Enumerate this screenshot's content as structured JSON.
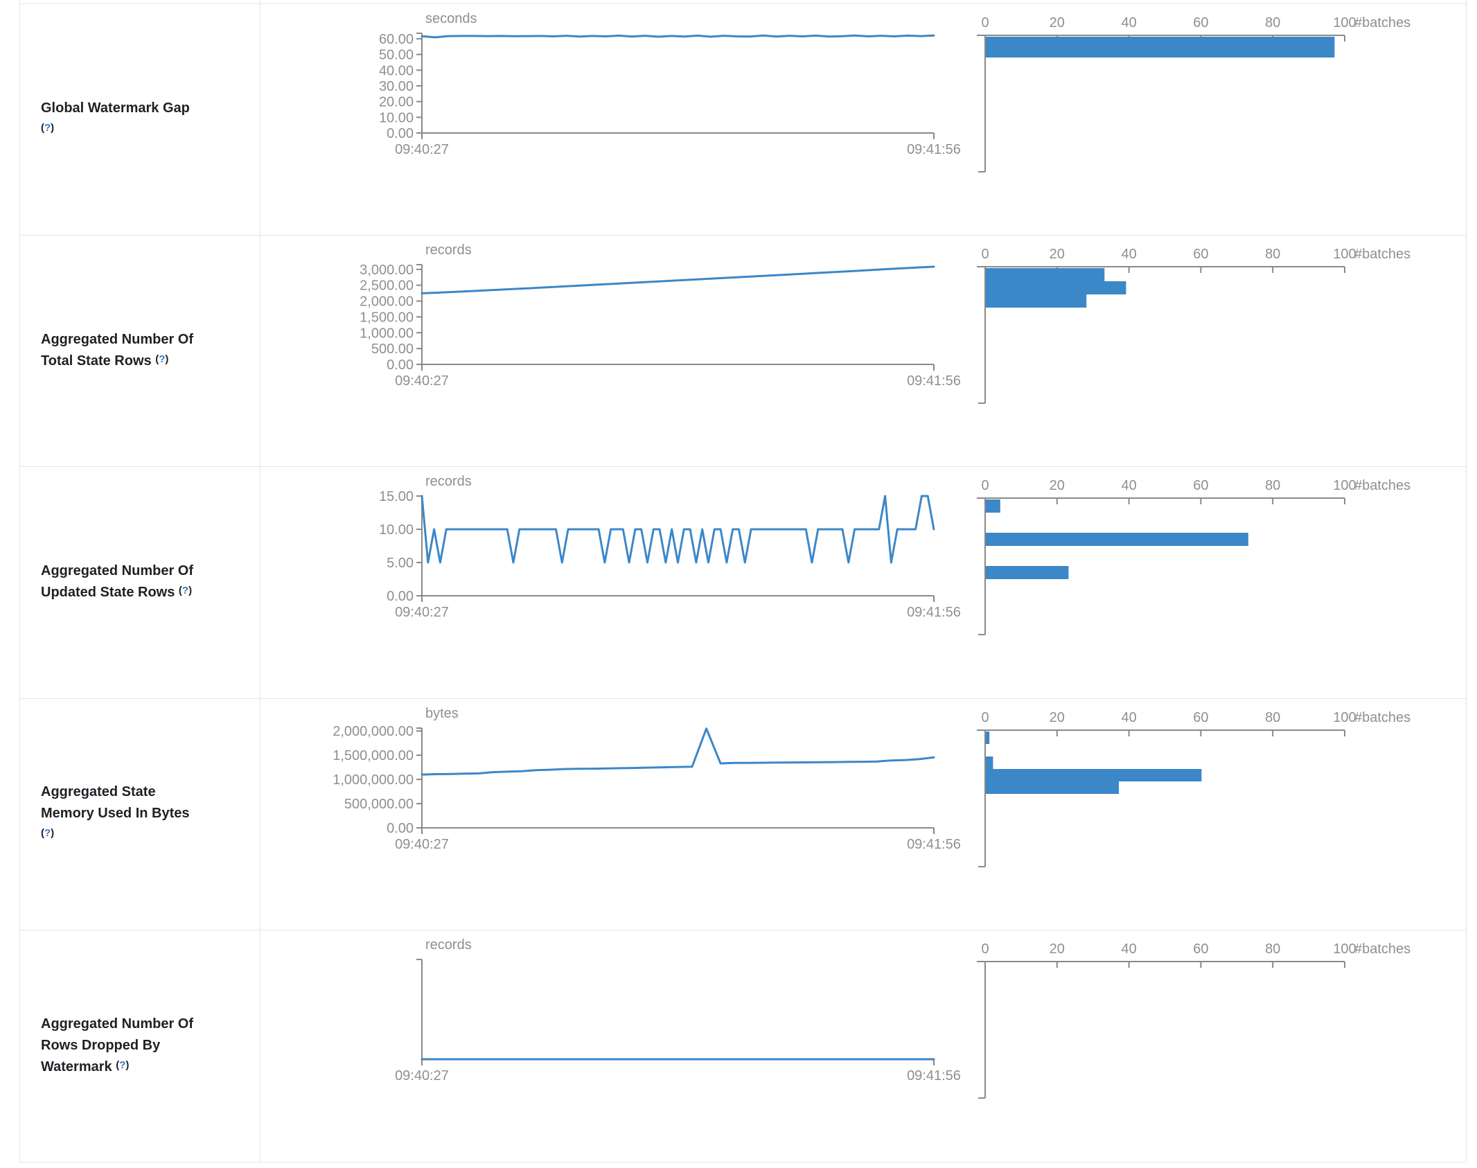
{
  "page": {
    "x_start_label": "09:40:27",
    "x_end_label": "09:41:56",
    "batches_axis_label": "#batches",
    "batches_ticks": [
      0,
      20,
      40,
      60,
      80,
      100
    ],
    "help_open": "(",
    "help_q": "?",
    "help_close": ")",
    "colors": {
      "accent": "#3b87c8",
      "axis_line": "#898989",
      "tick_text": "#8f8f8f",
      "label_text": "#1d2125",
      "help_link": "#3778c2",
      "border": "#e2e6ea"
    }
  },
  "chart_data": [
    {
      "label_lines": [
        "Global Watermark Gap"
      ],
      "help_on_own_line": true,
      "timeline": {
        "type": "line",
        "unit": "seconds",
        "ymax": 63.5,
        "yticks": [
          {
            "v": 60,
            "label": "60.00"
          },
          {
            "v": 50,
            "label": "50.00"
          },
          {
            "v": 40,
            "label": "40.00"
          },
          {
            "v": 30,
            "label": "30.00"
          },
          {
            "v": 20,
            "label": "20.00"
          },
          {
            "v": 10,
            "label": "10.00"
          },
          {
            "v": 0,
            "label": "0.00"
          }
        ],
        "x_range": [
          "09:40:27",
          "09:41:56"
        ],
        "values": [
          61.6,
          60.9,
          61.7,
          61.8,
          61.8,
          61.7,
          61.8,
          61.6,
          61.7,
          61.8,
          61.5,
          61.9,
          61.4,
          61.8,
          61.5,
          62.0,
          61.4,
          61.9,
          61.3,
          61.8,
          61.4,
          62.0,
          61.3,
          61.9,
          61.5,
          61.4,
          62.1,
          61.4,
          61.9,
          61.5,
          62.0,
          61.4,
          61.6,
          62.1,
          61.5,
          61.9,
          61.5,
          62.0,
          61.7,
          62.1
        ]
      },
      "histogram": {
        "type": "bar",
        "xlabel": "#batches",
        "xlim": [
          0,
          100
        ],
        "bars": [
          {
            "batches": 97,
            "offset": 0,
            "height": 30
          }
        ]
      }
    },
    {
      "label_lines": [
        "Aggregated Number Of",
        "Total State Rows"
      ],
      "help_on_own_line": false,
      "timeline": {
        "type": "line",
        "unit": "records",
        "ymax": 3150,
        "yticks": [
          {
            "v": 3000,
            "label": "3,000.00"
          },
          {
            "v": 2500,
            "label": "2,500.00"
          },
          {
            "v": 2000,
            "label": "2,000.00"
          },
          {
            "v": 1500,
            "label": "1,500.00"
          },
          {
            "v": 1000,
            "label": "1,000.00"
          },
          {
            "v": 500,
            "label": "500.00"
          },
          {
            "v": 0,
            "label": "0.00"
          }
        ],
        "x_range": [
          "09:40:27",
          "09:41:56"
        ],
        "values": [
          2245,
          2262,
          2280,
          2300,
          2318,
          2340,
          2360,
          2382,
          2400,
          2422,
          2445,
          2466,
          2488,
          2508,
          2530,
          2552,
          2574,
          2596,
          2618,
          2640,
          2662,
          2684,
          2708,
          2728,
          2752,
          2774,
          2796,
          2818,
          2840,
          2862,
          2886,
          2908,
          2930,
          2952,
          2976,
          2998,
          3020,
          3042,
          3065,
          3085
        ]
      },
      "histogram": {
        "type": "bar",
        "xlabel": "#batches",
        "xlim": [
          0,
          100
        ],
        "bars": [
          {
            "batches": 33,
            "offset": 0,
            "height": 19
          },
          {
            "batches": 39,
            "offset": 19,
            "height": 19
          },
          {
            "batches": 28,
            "offset": 38,
            "height": 19
          }
        ]
      }
    },
    {
      "label_lines": [
        "Aggregated Number Of",
        "Updated State Rows"
      ],
      "help_on_own_line": false,
      "timeline": {
        "type": "line",
        "unit": "records",
        "ymax": 15,
        "yticks": [
          {
            "v": 15,
            "label": "15.00"
          },
          {
            "v": 10,
            "label": "10.00"
          },
          {
            "v": 5,
            "label": "5.00"
          },
          {
            "v": 0,
            "label": "0.00"
          }
        ],
        "x_range": [
          "09:40:27",
          "09:41:56"
        ],
        "values": [
          15,
          5,
          10,
          5,
          10,
          10,
          10,
          10,
          10,
          10,
          10,
          10,
          10,
          10,
          10,
          5,
          10,
          10,
          10,
          10,
          10,
          10,
          10,
          5,
          10,
          10,
          10,
          10,
          10,
          10,
          5,
          10,
          10,
          10,
          5,
          10,
          10,
          5,
          10,
          10,
          5,
          10,
          5,
          10,
          10,
          5,
          10,
          5,
          10,
          10,
          5,
          10,
          10,
          5,
          10,
          10,
          10,
          10,
          10,
          10,
          10,
          10,
          10,
          10,
          5,
          10,
          10,
          10,
          10,
          10,
          5,
          10,
          10,
          10,
          10,
          10,
          15,
          5,
          10,
          10,
          10,
          10,
          15,
          15,
          10
        ]
      },
      "histogram": {
        "type": "bar",
        "xlabel": "#batches",
        "xlim": [
          0,
          100
        ],
        "bars": [
          {
            "batches": 4,
            "offset": 0,
            "height": 19
          },
          {
            "batches": 73,
            "offset": 48,
            "height": 19
          },
          {
            "batches": 23,
            "offset": 96,
            "height": 19
          }
        ]
      }
    },
    {
      "label_lines": [
        "Aggregated State",
        "Memory Used In Bytes"
      ],
      "help_on_own_line": true,
      "timeline": {
        "type": "line",
        "unit": "bytes",
        "ymax": 2060000,
        "yticks": [
          {
            "v": 2000000,
            "label": "2,000,000.00"
          },
          {
            "v": 1500000,
            "label": "1,500,000.00"
          },
          {
            "v": 1000000,
            "label": "1,000,000.00"
          },
          {
            "v": 500000,
            "label": "500,000.00"
          },
          {
            "v": 0,
            "label": "0.00"
          }
        ],
        "x_range": [
          "09:40:27",
          "09:41:56"
        ],
        "values": [
          1100000,
          1108000,
          1112000,
          1118000,
          1125000,
          1150000,
          1160000,
          1170000,
          1190000,
          1200000,
          1215000,
          1220000,
          1222000,
          1228000,
          1232000,
          1238000,
          1245000,
          1250000,
          1258000,
          1262000,
          2050000,
          1330000,
          1340000,
          1342000,
          1345000,
          1348000,
          1350000,
          1352000,
          1355000,
          1358000,
          1362000,
          1365000,
          1370000,
          1390000,
          1400000,
          1420000,
          1455000
        ]
      },
      "histogram": {
        "type": "bar",
        "xlabel": "#batches",
        "xlim": [
          0,
          100
        ],
        "bars": [
          {
            "batches": 1,
            "offset": 0,
            "height": 18
          },
          {
            "batches": 2,
            "offset": 36,
            "height": 18
          },
          {
            "batches": 60,
            "offset": 54,
            "height": 18
          },
          {
            "batches": 37,
            "offset": 72,
            "height": 18
          }
        ]
      }
    },
    {
      "label_lines": [
        "Aggregated Number Of",
        "Rows Dropped By",
        "Watermark"
      ],
      "help_on_own_line": false,
      "timeline": {
        "type": "line",
        "unit": "records",
        "ymax": 1,
        "yticks": [],
        "x_range": [
          "09:40:27",
          "09:41:56"
        ],
        "values": [
          0,
          0
        ]
      },
      "histogram": {
        "type": "bar",
        "xlabel": "#batches",
        "xlim": [
          0,
          100
        ],
        "bars": []
      }
    }
  ]
}
